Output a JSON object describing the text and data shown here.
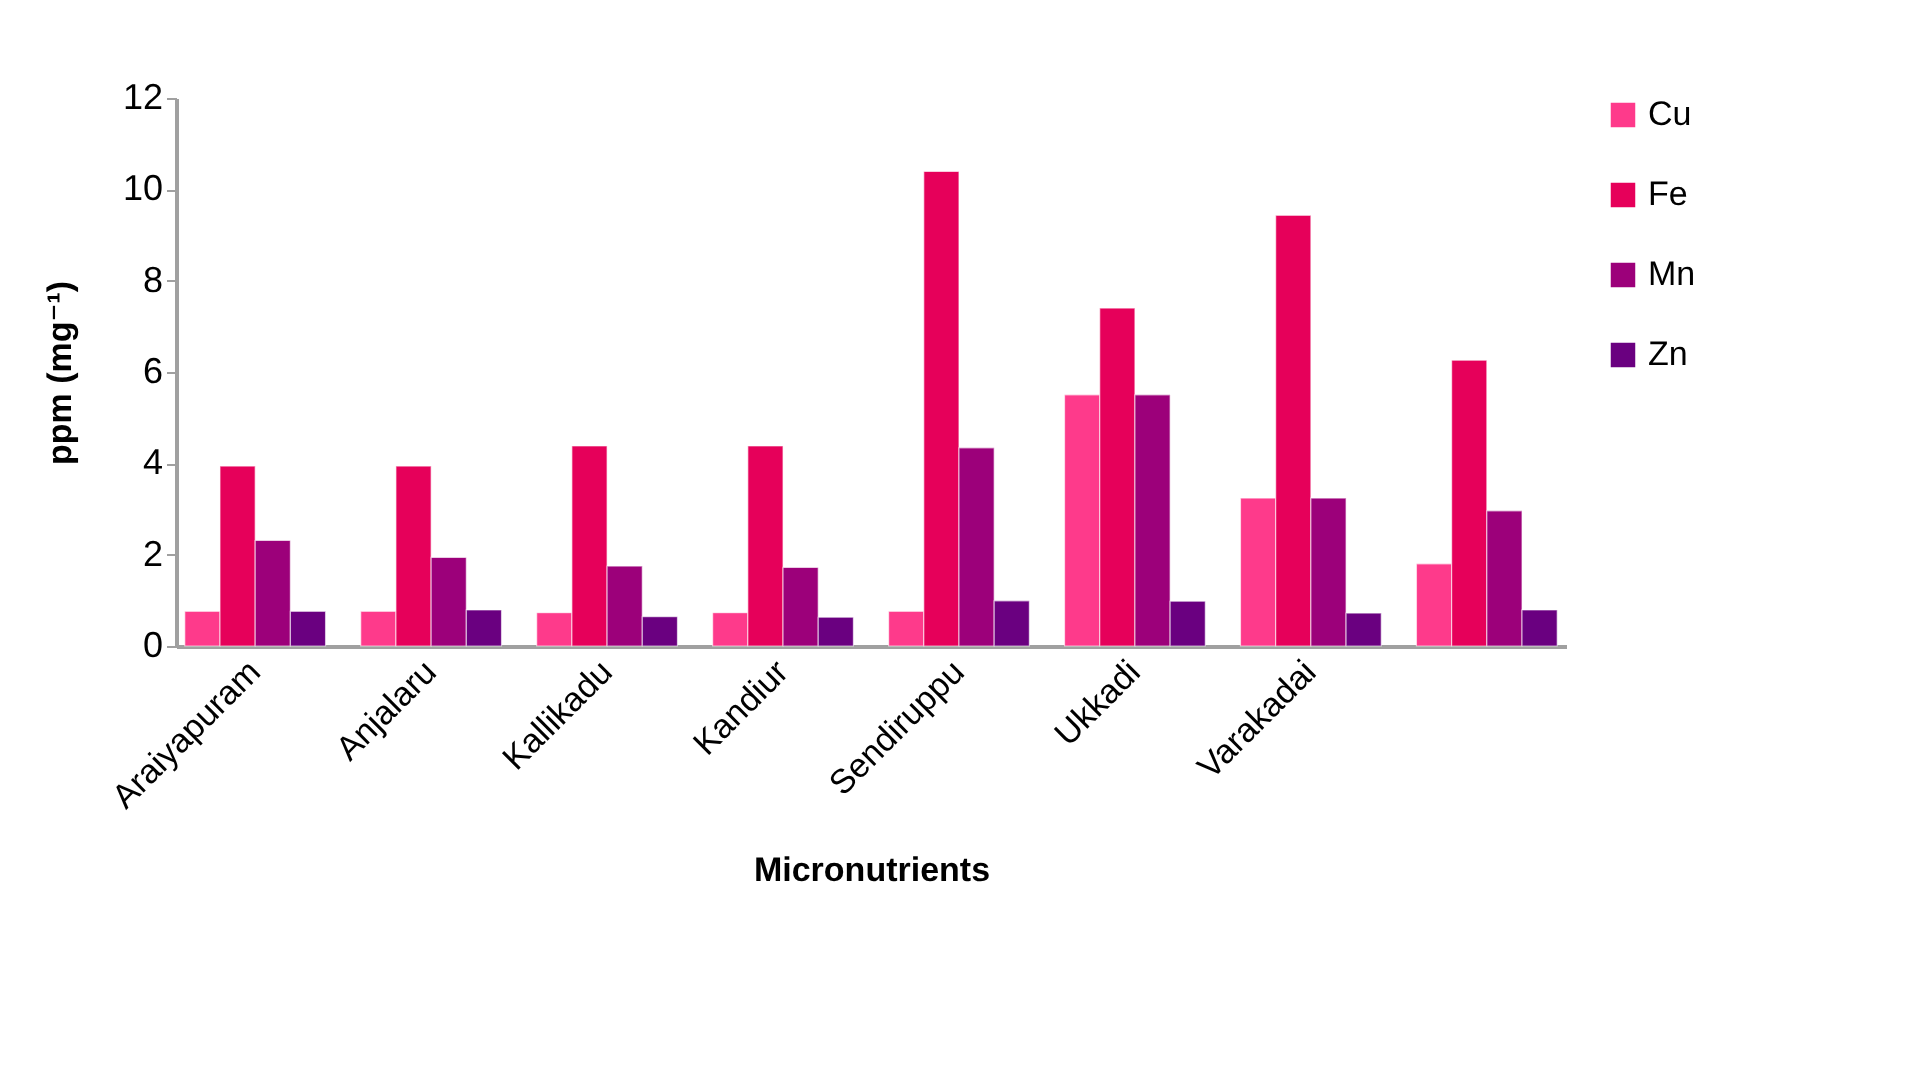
{
  "chart_data": {
    "type": "bar",
    "xlabel": "Micronutrients",
    "ylabel": "ppm (mg⁻¹)",
    "categories": [
      "Araiyapuram",
      "Anjalaru",
      "Kallikadu",
      "Kandiur",
      "Sendiruppu",
      "Ukkadi",
      "Varakadai",
      null
    ],
    "series": [
      {
        "name": "Cu",
        "color": "#fe3a8b",
        "values": [
          0.76,
          0.76,
          0.73,
          0.73,
          0.76,
          5.5,
          3.24,
          1.8
        ]
      },
      {
        "name": "Fe",
        "color": "#e6005a",
        "values": [
          3.94,
          3.94,
          4.38,
          4.38,
          10.39,
          7.4,
          9.43,
          6.26
        ]
      },
      {
        "name": "Mn",
        "color": "#9c007a",
        "values": [
          2.31,
          1.94,
          1.75,
          1.72,
          4.34,
          5.5,
          3.24,
          2.96
        ]
      },
      {
        "name": "Zn",
        "color": "#6a0080",
        "values": [
          0.76,
          0.79,
          0.64,
          0.63,
          0.99,
          0.98,
          0.72,
          0.79
        ]
      }
    ],
    "ylim": [
      0,
      12
    ],
    "yticks": [
      0,
      2,
      4,
      6,
      8,
      10,
      12
    ],
    "grid": false,
    "legend": "right"
  }
}
